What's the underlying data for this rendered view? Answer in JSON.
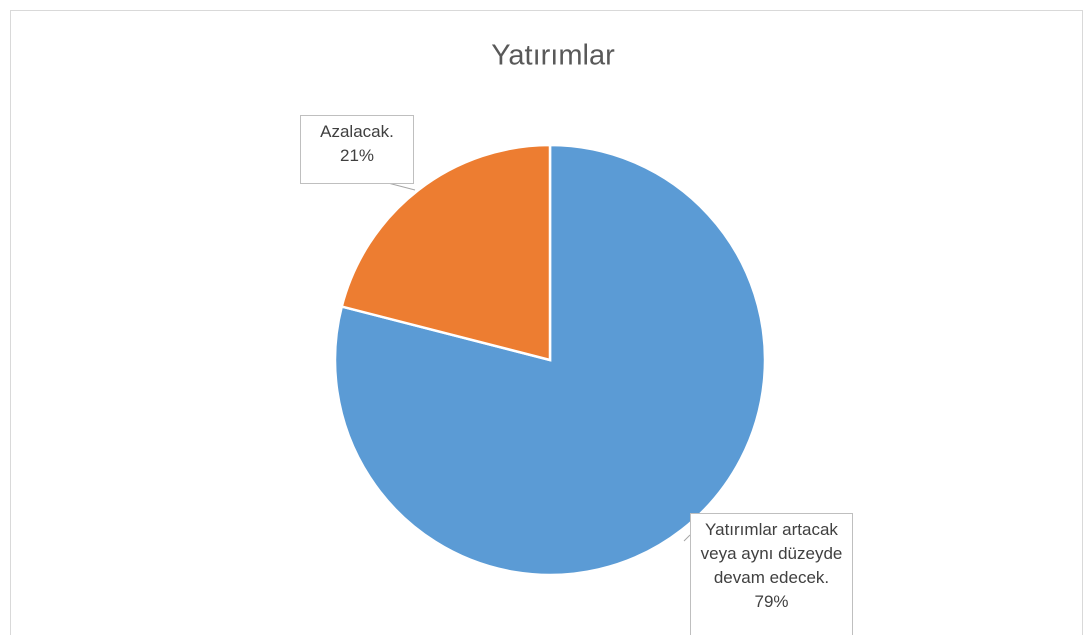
{
  "chart_data": {
    "type": "pie",
    "title": "Yatırımlar",
    "categories": [
      "Yatırımlar artacak veya aynı düzeyde devam edecek.",
      "Azalacak."
    ],
    "values": [
      79,
      21
    ],
    "value_labels": [
      "79%",
      "21%"
    ],
    "colors": [
      "#5b9bd5",
      "#ed7d31"
    ]
  }
}
